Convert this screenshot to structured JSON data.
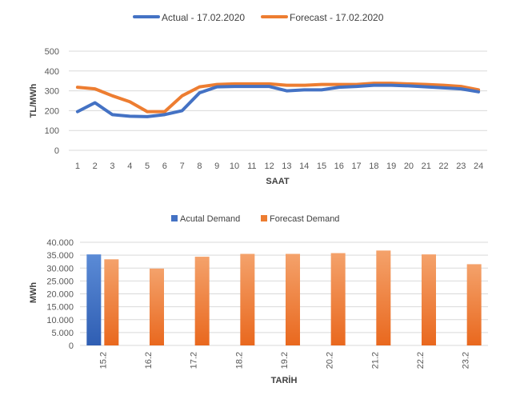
{
  "colors": {
    "actual": "#4472C4",
    "forecast": "#ED7D31",
    "gridline": "#D9D9D9",
    "axis_text": "#595959",
    "axis_title": "#404040"
  },
  "chart_data": [
    {
      "type": "line",
      "legend_position": "top",
      "xlabel": "SAAT",
      "ylabel": "TL/MWh",
      "ylim": [
        0,
        500
      ],
      "yticks": [
        "0",
        "100",
        "200",
        "300",
        "400",
        "500"
      ],
      "x": [
        "1",
        "2",
        "3",
        "4",
        "5",
        "6",
        "7",
        "8",
        "9",
        "10",
        "11",
        "12",
        "13",
        "14",
        "15",
        "16",
        "17",
        "18",
        "19",
        "20",
        "21",
        "22",
        "23",
        "24"
      ],
      "grid": true,
      "series": [
        {
          "name": "Actual - 17.02.2020",
          "color": "#4472C4",
          "values": [
            195,
            240,
            180,
            172,
            170,
            180,
            200,
            290,
            320,
            322,
            322,
            322,
            300,
            305,
            305,
            318,
            322,
            328,
            328,
            325,
            320,
            315,
            310,
            295
          ]
        },
        {
          "name": "Forecast - 17.02.2020",
          "color": "#ED7D31",
          "values": [
            318,
            310,
            275,
            245,
            195,
            195,
            275,
            320,
            332,
            335,
            335,
            335,
            328,
            328,
            332,
            332,
            332,
            338,
            338,
            335,
            332,
            328,
            322,
            305
          ]
        }
      ]
    },
    {
      "type": "bar",
      "legend_position": "top",
      "xlabel": "TARİH",
      "ylabel": "MWh",
      "ylim": [
        0,
        40000
      ],
      "yticks": [
        "0",
        "5.000",
        "10.000",
        "15.000",
        "20.000",
        "25.000",
        "30.000",
        "35.000",
        "40.000"
      ],
      "categories": [
        "15.2",
        "16.2",
        "17.2",
        "18.2",
        "19.2",
        "20.2",
        "21.2",
        "22.2",
        "23.2"
      ],
      "grid": true,
      "series": [
        {
          "name": "Acutal Demand",
          "color": "#4472C4",
          "values": [
            35300,
            null,
            null,
            null,
            null,
            null,
            null,
            null,
            null
          ]
        },
        {
          "name": "Forecast Demand",
          "color": "#ED7D31",
          "values": [
            33400,
            29800,
            34400,
            35500,
            35500,
            35800,
            36800,
            35300,
            31500
          ]
        }
      ]
    }
  ]
}
